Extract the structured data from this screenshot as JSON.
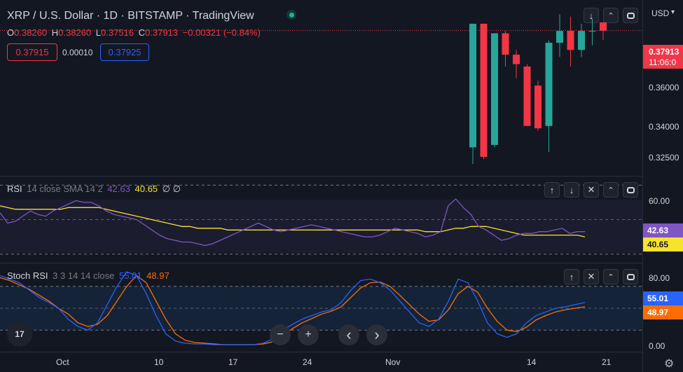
{
  "header": {
    "symbol": "XRP / U.S. Dollar · 1D · BITSTAMP · TradingView",
    "ohlc": {
      "o_label": "O",
      "o": "0.38260",
      "h_label": "H",
      "h": "0.38260",
      "l_label": "L",
      "l": "0.37516",
      "c_label": "C",
      "c": "0.37913",
      "change": "−0.00321 (−0.84%)"
    },
    "sell_price": "0.37915",
    "spread": "0.00010",
    "buy_price": "0.37925"
  },
  "toolbar": {
    "down_icon": "↓",
    "collapse_icon": "⤫",
    "maximize_icon": "⛶",
    "up_icon": "↑",
    "close_icon": "✕"
  },
  "currency": "USD",
  "price_axis": {
    "labels": [
      "0.36000",
      "0.34000",
      "0.32500"
    ],
    "current_price": "0.37913",
    "countdown": "11:06:0"
  },
  "rsi": {
    "title": "RSI",
    "params": "14 close SMA 14 2",
    "value": "42.63",
    "sma": "40.65",
    "extra": "∅ ∅",
    "axis_label": "60.00",
    "tag_rsi": "42.63",
    "tag_sma": "40.65"
  },
  "stoch": {
    "title": "Stoch RSI",
    "params": "3 3 14 14 close",
    "k": "55.01",
    "d": "48.97",
    "axis_top": "80.00",
    "axis_bottom": "0.00",
    "tag_k": "55.01",
    "tag_d": "48.97"
  },
  "time_axis": [
    "Oct",
    "10",
    "17",
    "24",
    "Nov",
    "14",
    "21"
  ],
  "nav": {
    "minus": "−",
    "plus": "+",
    "left": "‹",
    "right": "›"
  },
  "logo": "TV",
  "colors": {
    "bg": "#131722",
    "up": "#26a69a",
    "down": "#f23645",
    "rsi": "#7e57c2",
    "sma": "#f7e22c",
    "k": "#2962ff",
    "d": "#ff6d00"
  },
  "chart_data": {
    "type": "line",
    "candles_visible": [
      {
        "o": 0.33,
        "h": 0.382,
        "l": 0.323,
        "c": 0.382
      },
      {
        "o": 0.382,
        "h": 0.382,
        "l": 0.325,
        "c": 0.326
      },
      {
        "o": 0.331,
        "h": 0.378,
        "l": 0.33,
        "c": 0.378
      },
      {
        "o": 0.378,
        "h": 0.379,
        "l": 0.364,
        "c": 0.369
      },
      {
        "o": 0.369,
        "h": 0.371,
        "l": 0.359,
        "c": 0.365
      },
      {
        "o": 0.364,
        "h": 0.365,
        "l": 0.339,
        "c": 0.339
      },
      {
        "o": 0.356,
        "h": 0.358,
        "l": 0.337,
        "c": 0.338
      },
      {
        "o": 0.339,
        "h": 0.375,
        "l": 0.328,
        "c": 0.374
      },
      {
        "o": 0.374,
        "h": 0.386,
        "l": 0.368,
        "c": 0.379
      },
      {
        "o": 0.379,
        "h": 0.385,
        "l": 0.364,
        "c": 0.371
      },
      {
        "o": 0.371,
        "h": 0.382,
        "l": 0.368,
        "c": 0.379
      },
      {
        "o": 0.379,
        "h": 0.384,
        "l": 0.373,
        "c": 0.379
      },
      {
        "o": 0.3826,
        "h": 0.3826,
        "l": 0.3752,
        "c": 0.3791
      }
    ],
    "rsi_values": [
      54,
      48,
      49,
      52,
      55,
      53,
      52,
      55,
      57,
      59,
      61,
      60,
      60,
      58,
      55,
      53,
      52,
      51,
      50,
      47,
      44,
      41,
      39,
      38,
      37,
      37,
      36,
      35,
      36,
      38,
      40,
      42,
      44,
      46,
      48,
      46,
      44,
      43,
      44,
      45,
      46,
      47,
      46,
      45,
      44,
      43,
      42,
      41,
      40,
      40,
      41,
      43,
      45,
      44,
      43,
      42,
      40,
      41,
      43,
      58,
      62,
      57,
      53,
      46,
      44,
      41,
      38,
      39,
      41,
      42,
      42,
      43,
      43,
      44,
      45,
      42,
      43,
      43
    ],
    "rsi_sma_values": [
      58,
      57,
      56,
      56,
      56,
      56,
      56,
      56,
      56,
      57,
      57,
      57,
      57,
      57,
      56,
      55,
      54,
      53,
      52,
      51,
      50,
      49,
      48,
      47,
      46,
      46,
      45,
      45,
      45,
      45,
      44,
      44,
      44,
      44,
      44,
      44,
      44,
      44,
      44,
      44,
      44,
      44,
      44,
      44,
      44,
      44,
      44,
      44,
      44,
      44,
      44,
      44,
      44,
      44,
      44,
      44,
      43,
      43,
      43,
      44,
      45,
      45,
      46,
      46,
      46,
      45,
      44,
      43,
      42,
      41,
      41,
      41,
      41,
      41,
      41,
      41,
      41,
      40
    ],
    "k_values": [
      95,
      90,
      85,
      75,
      65,
      58,
      50,
      35,
      25,
      20,
      30,
      55,
      80,
      100,
      95,
      70,
      40,
      15,
      5,
      2,
      1,
      1,
      0,
      0,
      0,
      0,
      0,
      2,
      8,
      20,
      28,
      35,
      40,
      45,
      48,
      58,
      75,
      88,
      90,
      85,
      75,
      60,
      45,
      30,
      25,
      35,
      60,
      90,
      85,
      60,
      30,
      15,
      10,
      15,
      30,
      40,
      45,
      50,
      52,
      55,
      58
    ],
    "d_values": [
      92,
      88,
      82,
      76,
      68,
      60,
      50,
      42,
      30,
      25,
      28,
      40,
      60,
      80,
      95,
      85,
      60,
      35,
      15,
      6,
      3,
      2,
      1,
      0,
      0,
      0,
      0,
      1,
      4,
      12,
      22,
      30,
      36,
      42,
      46,
      52,
      65,
      78,
      85,
      86,
      80,
      68,
      55,
      42,
      32,
      34,
      48,
      70,
      80,
      72,
      50,
      32,
      20,
      18,
      24,
      34,
      40,
      45,
      48,
      50,
      52
    ]
  }
}
